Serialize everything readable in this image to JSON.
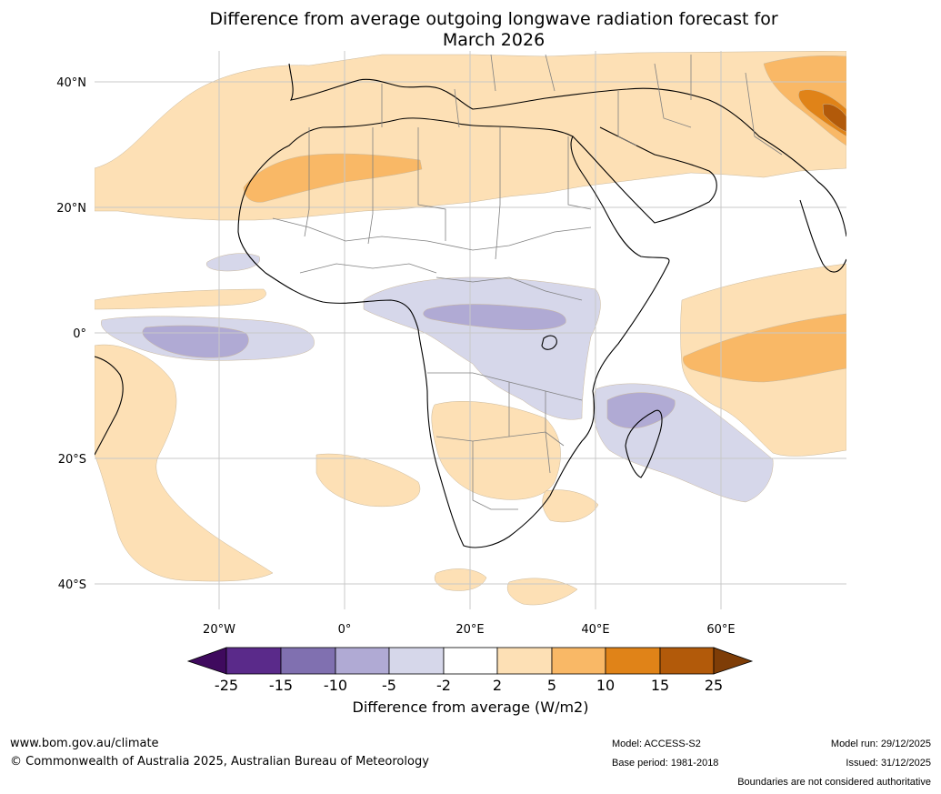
{
  "title": {
    "line1": "Difference from average outgoing longwave radiation forecast for",
    "line2": "March 2026"
  },
  "map": {
    "lat_labels": [
      "40°N",
      "20°N",
      "0°",
      "20°S",
      "40°S"
    ],
    "lon_labels": [
      "20°W",
      "0°",
      "20°E",
      "40°E",
      "60°E"
    ]
  },
  "colorbar": {
    "ticks": [
      "-25",
      "-15",
      "-10",
      "-5",
      "-2",
      "2",
      "5",
      "10",
      "15",
      "25"
    ],
    "colors": [
      "#3f0a5e",
      "#5a2a8a",
      "#8070b0",
      "#b0aad4",
      "#d6d7ea",
      "#ffffff",
      "#fde0b5",
      "#f9b866",
      "#e08318",
      "#b25a0a",
      "#7e3d07"
    ],
    "label": "Difference from average (W/m2)"
  },
  "footer": {
    "website": "www.bom.gov.au/climate",
    "copyright": "© Commonwealth of Australia 2025, Australian Bureau of Meteorology",
    "model": "Model: ACCESS-S2",
    "base_period": "Base period: 1981-2018",
    "model_run": "Model run: 29/12/2025",
    "issued": "Issued: 31/12/2025",
    "disclaimer": "Boundaries are not considered authoritative"
  }
}
